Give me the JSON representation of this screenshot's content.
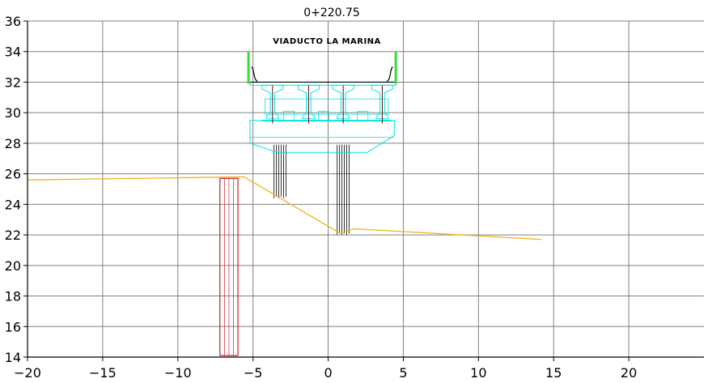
{
  "chart_data": {
    "type": "cross-section",
    "title": "0+220.75",
    "annotation": "VIADUCTO LA MARINA",
    "xlim": [
      -20,
      25
    ],
    "ylim": [
      14,
      36
    ],
    "x_ticks": [
      -20,
      -15,
      -10,
      -5,
      0,
      5,
      10,
      15,
      20
    ],
    "x_tick_labels": [
      "−20",
      "−15",
      "−10",
      "−5",
      "0",
      "5",
      "10",
      "15",
      "20"
    ],
    "y_ticks": [
      14,
      16,
      18,
      20,
      22,
      24,
      26,
      28,
      30,
      32,
      34,
      36
    ],
    "grid": true,
    "colors": {
      "grid": "#808080",
      "axis": "#000000",
      "terrain": "#f0b41e",
      "structure": "#00e5e5",
      "pile": "#000000",
      "wall": "#cc2222",
      "barrier": "#33dd33",
      "deck": "#000000"
    },
    "terrain": [
      [
        -20,
        25.6
      ],
      [
        -5.6,
        25.8
      ],
      [
        0.8,
        22.1
      ],
      [
        1.7,
        22.4
      ],
      [
        14.2,
        21.7
      ]
    ],
    "retaining_wall": {
      "x": [
        -7.2,
        -6.0
      ],
      "y": [
        14.1,
        25.7
      ]
    },
    "deck": {
      "x": [
        -5.2,
        4.5
      ],
      "y_top": 32.0,
      "y_bottom": 31.8
    },
    "barriers": [
      {
        "x": -5.3,
        "y": [
          31.9,
          34.0
        ]
      },
      {
        "x": 4.5,
        "y": [
          31.9,
          34.0
        ]
      }
    ],
    "girders_x": [
      -3.7,
      -1.3,
      1.0,
      3.6
    ],
    "cap_beam": {
      "x": [
        -5.2,
        4.4
      ],
      "y": [
        28.0,
        29.5
      ]
    },
    "piles": [
      {
        "x": [
          -3.6,
          -2.8
        ],
        "y_bottom": 24.4
      },
      {
        "x": [
          0.6,
          1.4
        ],
        "y_bottom": 22.0
      }
    ]
  }
}
